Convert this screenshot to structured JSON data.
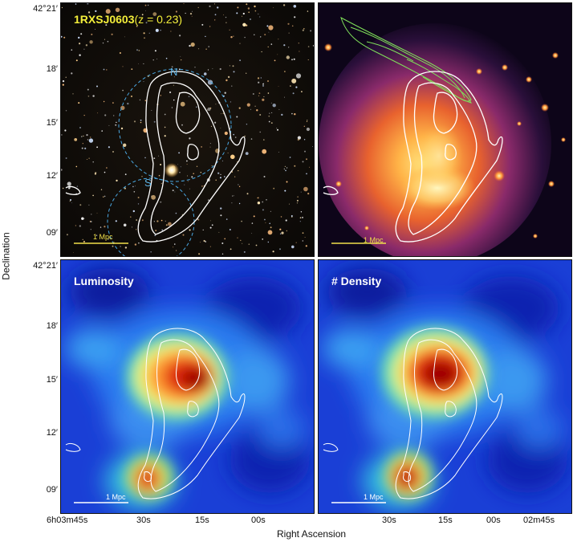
{
  "title": {
    "name": "1RXSJ0603",
    "redshift": "(z = 0.23)"
  },
  "colors": {
    "title": "#f3ee3a",
    "scalebar": "#f0e04a",
    "circle": "#4aa6e0",
    "contour_white": "#ffffff",
    "contour_green": "#7fe05a"
  },
  "panels": {
    "optical": {
      "scalebar": "1 Mpc",
      "circle_north": "N",
      "circle_south": "S"
    },
    "xray": {
      "scalebar": "1 Mpc"
    },
    "luminosity": {
      "label": "Luminosity",
      "scalebar": "1 Mpc"
    },
    "density": {
      "label": "# Density",
      "scalebar": "1 Mpc"
    }
  },
  "axes": {
    "ylabel": "Declination",
    "xlabel": "Right Ascension",
    "yticks": [
      "42°21′",
      "18′",
      "15′",
      "12′",
      "09′"
    ],
    "xticks": [
      "6h03m45s",
      "30s",
      "15s",
      "00s",
      "02m45s"
    ]
  }
}
